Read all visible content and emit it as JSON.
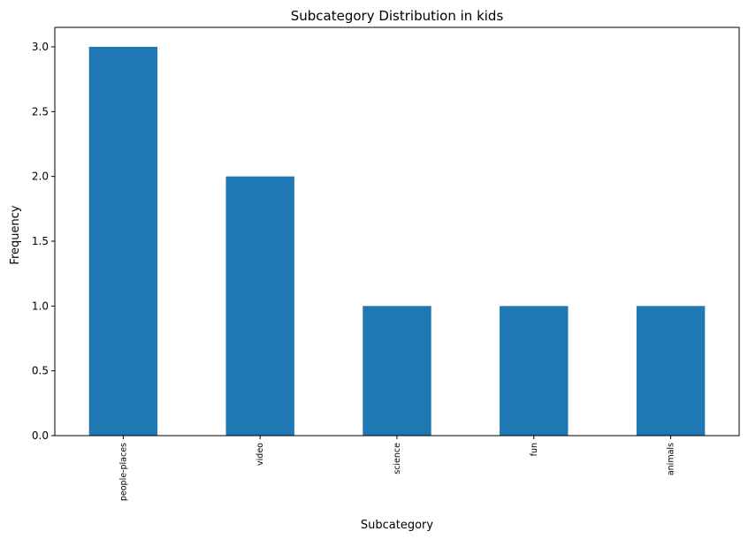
{
  "chart_data": {
    "type": "bar",
    "title": "Subcategory Distribution in kids",
    "xlabel": "Subcategory",
    "ylabel": "Frequency",
    "categories": [
      "people-places",
      "video",
      "science",
      "fun",
      "animals"
    ],
    "values": [
      3,
      2,
      1,
      1,
      1
    ],
    "ylim": [
      0,
      3.15
    ],
    "yticks": [
      "0.0",
      "0.5",
      "1.0",
      "1.5",
      "2.0",
      "2.5",
      "3.0"
    ],
    "x_tick_rotation": "vertical",
    "grid": false,
    "legend": "none",
    "bar_color": "#1f77b4"
  }
}
